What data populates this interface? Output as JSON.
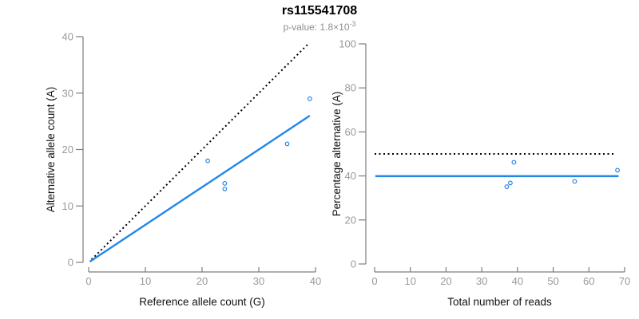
{
  "title": "rs115541708",
  "subtitle": {
    "base": "p-value: 1.8×10",
    "exponent": "-3"
  },
  "colors": {
    "accent_blue": "#2387E8",
    "axis_line_gray": "#7d7d7d",
    "tick_label_gray": "#98999b",
    "axis_title_black": "#111111",
    "identity_line_black": "#000000",
    "title_black": "#000000",
    "subtitle_gray": "#8e8e8e",
    "background": "#ffffff"
  },
  "chart_data": [
    {
      "type": "scatter",
      "panel": "left",
      "xlabel": "Reference allele count (G)",
      "ylabel": "Alternative allele count (A)",
      "xlim": [
        0,
        40
      ],
      "ylim": [
        0,
        40
      ],
      "xticks": [
        0,
        10,
        20,
        30,
        40
      ],
      "yticks": [
        0,
        10,
        20,
        30,
        40
      ],
      "grid": false,
      "points": [
        [
          21,
          18
        ],
        [
          24,
          13
        ],
        [
          24,
          14
        ],
        [
          35,
          21
        ],
        [
          39,
          29
        ]
      ],
      "lines": [
        {
          "name": "identity-line",
          "style": "dotted",
          "color": "#000000",
          "x1": 0.5,
          "y1": 0.5,
          "x2": 38.7,
          "y2": 38.7
        },
        {
          "name": "fit-line",
          "style": "solid",
          "color": "#2387E8",
          "x1": 0.2,
          "y1": 0.13,
          "x2": 39.0,
          "y2": 26.0
        }
      ]
    },
    {
      "type": "scatter",
      "panel": "right",
      "xlabel": "Total number of reads",
      "ylabel": "Percentage alternative (A)",
      "xlim": [
        0,
        70
      ],
      "ylim": [
        0,
        100
      ],
      "xticks": [
        0,
        10,
        20,
        30,
        40,
        50,
        60,
        70
      ],
      "yticks": [
        0,
        20,
        40,
        60,
        80,
        100
      ],
      "grid": false,
      "points": [
        [
          37,
          35.1
        ],
        [
          38,
          36.8
        ],
        [
          39,
          46.2
        ],
        [
          56,
          37.5
        ],
        [
          68,
          42.6
        ]
      ],
      "lines": [
        {
          "name": "expected-line",
          "style": "dotted",
          "color": "#000000",
          "x1": 0.0,
          "y1": 50,
          "x2": 66.9,
          "y2": 50
        },
        {
          "name": "fit-line",
          "style": "solid",
          "color": "#2387E8",
          "x1": 0.2,
          "y1": 39.9,
          "x2": 68.3,
          "y2": 39.9
        }
      ]
    }
  ]
}
